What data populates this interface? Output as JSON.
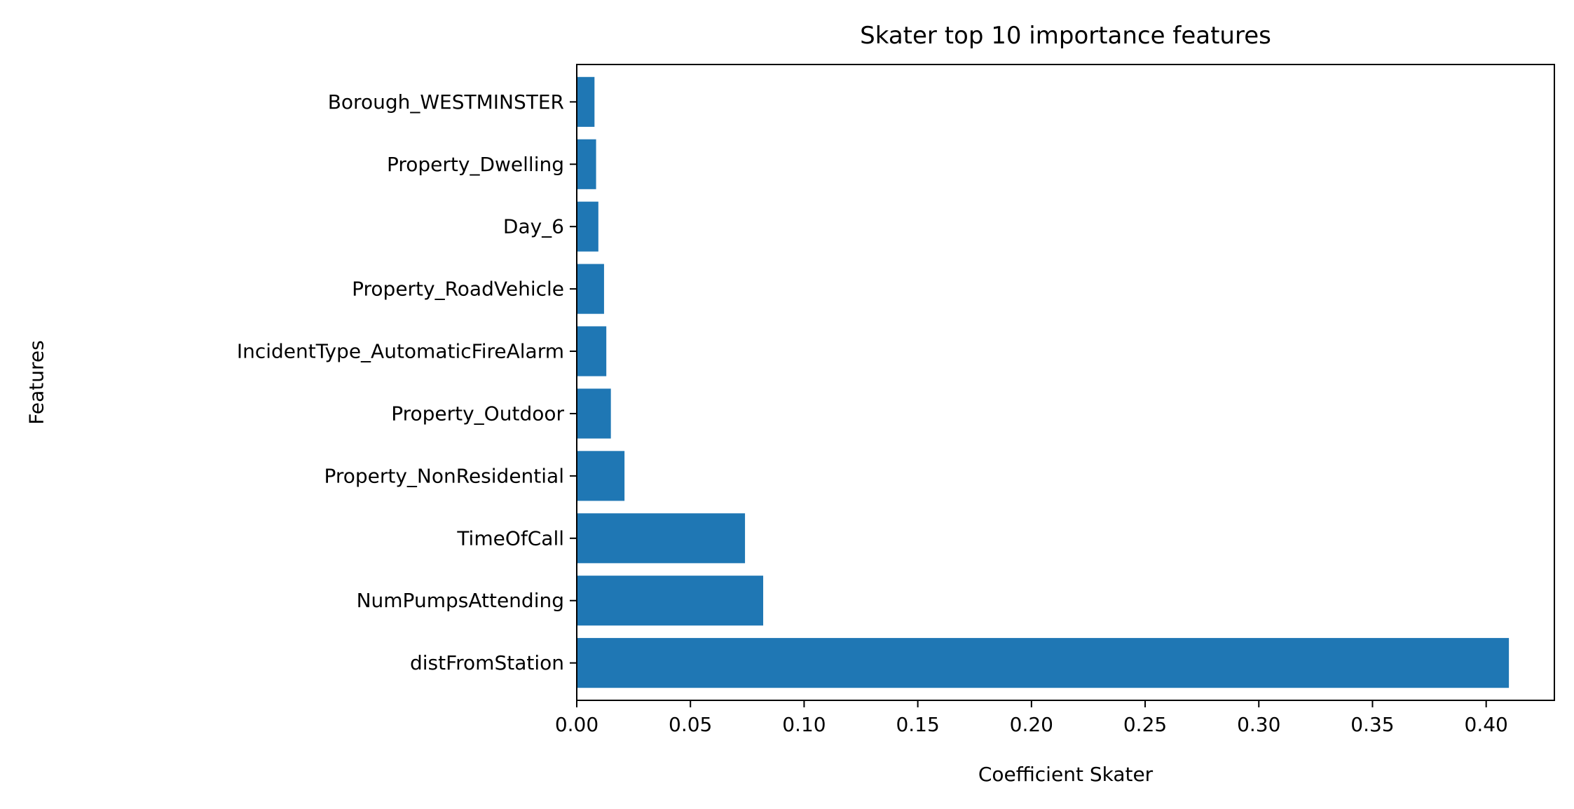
{
  "chart_data": {
    "type": "bar",
    "orientation": "horizontal",
    "title": "Skater top 10 importance features",
    "xlabel": "Coefficient Skater",
    "ylabel": "Features",
    "categories": [
      "distFromStation",
      "NumPumpsAttending",
      "TimeOfCall",
      "Property_NonResidential",
      "Property_Outdoor",
      "IncidentType_AutomaticFireAlarm",
      "Property_RoadVehicle",
      "Day_6",
      "Property_Dwelling",
      "Borough_WESTMINSTER"
    ],
    "values": [
      0.41,
      0.082,
      0.074,
      0.021,
      0.015,
      0.013,
      0.012,
      0.0095,
      0.0085,
      0.0078
    ],
    "xlim": [
      0.0,
      0.43
    ],
    "xticks": [
      "0.00",
      "0.05",
      "0.10",
      "0.15",
      "0.20",
      "0.25",
      "0.30",
      "0.35",
      "0.40"
    ],
    "bar_color": "#1f77b4",
    "grid": false,
    "legend": "none"
  }
}
